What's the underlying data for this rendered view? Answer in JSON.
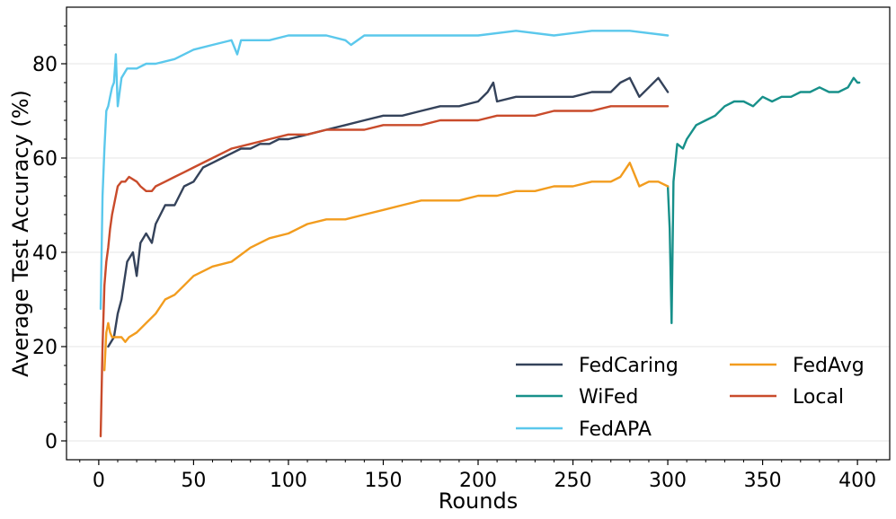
{
  "chart_data": {
    "type": "line",
    "title": "",
    "xlabel": "Rounds",
    "ylabel": "Average Test Accuracy (%)",
    "xlim": [
      -17,
      417
    ],
    "ylim": [
      -4,
      92
    ],
    "xticks": [
      0,
      50,
      100,
      150,
      200,
      250,
      300,
      350,
      400
    ],
    "yticks": [
      0,
      20,
      40,
      60,
      80
    ],
    "grid": "horizontal",
    "legend_position": "lower-right",
    "series": [
      {
        "name": "FedCaring",
        "color": "#34425a",
        "x": [
          5,
          8,
          10,
          12,
          15,
          18,
          20,
          22,
          25,
          28,
          30,
          35,
          40,
          45,
          50,
          55,
          60,
          65,
          70,
          75,
          80,
          85,
          90,
          95,
          100,
          110,
          120,
          130,
          140,
          150,
          160,
          170,
          180,
          190,
          200,
          205,
          208,
          210,
          220,
          230,
          240,
          250,
          260,
          270,
          275,
          280,
          285,
          290,
          295,
          300
        ],
        "y": [
          20,
          22,
          27,
          30,
          38,
          40,
          35,
          42,
          44,
          42,
          46,
          50,
          50,
          54,
          55,
          58,
          59,
          60,
          61,
          62,
          62,
          63,
          63,
          64,
          64,
          65,
          66,
          67,
          68,
          69,
          69,
          70,
          71,
          71,
          72,
          74,
          76,
          72,
          73,
          73,
          73,
          73,
          74,
          74,
          76,
          77,
          73,
          75,
          77,
          74
        ]
      },
      {
        "name": "WiFed",
        "color": "#17908a",
        "x": [
          300,
          301,
          302,
          303,
          305,
          308,
          310,
          315,
          320,
          325,
          330,
          335,
          340,
          345,
          350,
          355,
          360,
          365,
          370,
          375,
          380,
          385,
          390,
          395,
          398,
          400,
          401
        ],
        "y": [
          54,
          45,
          25,
          55,
          63,
          62,
          64,
          67,
          68,
          69,
          71,
          72,
          72,
          71,
          73,
          72,
          73,
          73,
          74,
          74,
          75,
          74,
          74,
          75,
          77,
          76,
          76
        ]
      },
      {
        "name": "FedAPA",
        "color": "#5bc8ec",
        "x": [
          1,
          2,
          3,
          4,
          5,
          6,
          7,
          8,
          9,
          10,
          12,
          15,
          20,
          25,
          30,
          40,
          50,
          60,
          70,
          73,
          75,
          80,
          90,
          100,
          110,
          120,
          130,
          133,
          140,
          150,
          160,
          170,
          180,
          200,
          220,
          240,
          260,
          280,
          300
        ],
        "y": [
          28,
          52,
          62,
          70,
          71,
          73,
          75,
          76,
          82,
          71,
          77,
          79,
          79,
          80,
          80,
          81,
          83,
          84,
          85,
          82,
          85,
          85,
          85,
          86,
          86,
          86,
          85,
          84,
          86,
          86,
          86,
          86,
          86,
          86,
          87,
          86,
          87,
          87,
          86
        ]
      },
      {
        "name": "FedAvg",
        "color": "#f29c1e",
        "x": [
          3,
          4,
          5,
          6,
          7,
          8,
          10,
          12,
          14,
          16,
          20,
          25,
          30,
          35,
          40,
          45,
          50,
          60,
          70,
          80,
          90,
          100,
          110,
          120,
          130,
          140,
          150,
          160,
          170,
          180,
          190,
          200,
          210,
          220,
          230,
          240,
          250,
          260,
          270,
          275,
          280,
          285,
          290,
          295,
          300
        ],
        "y": [
          15,
          23,
          25,
          23,
          22,
          22,
          22,
          22,
          21,
          22,
          23,
          25,
          27,
          30,
          31,
          33,
          35,
          37,
          38,
          41,
          43,
          44,
          46,
          47,
          47,
          48,
          49,
          50,
          51,
          51,
          51,
          52,
          52,
          53,
          53,
          54,
          54,
          55,
          55,
          56,
          59,
          54,
          55,
          55,
          54
        ]
      },
      {
        "name": "Local",
        "color": "#c94b2b",
        "x": [
          1,
          2,
          3,
          4,
          5,
          6,
          7,
          8,
          10,
          12,
          14,
          16,
          20,
          22,
          25,
          28,
          30,
          35,
          40,
          45,
          50,
          60,
          70,
          80,
          90,
          100,
          110,
          120,
          130,
          140,
          150,
          160,
          170,
          180,
          190,
          200,
          210,
          220,
          230,
          240,
          250,
          260,
          270,
          280,
          290,
          300
        ],
        "y": [
          1,
          20,
          33,
          38,
          41,
          45,
          48,
          50,
          54,
          55,
          55,
          56,
          55,
          54,
          53,
          53,
          54,
          55,
          56,
          57,
          58,
          60,
          62,
          63,
          64,
          65,
          65,
          66,
          66,
          66,
          67,
          67,
          67,
          68,
          68,
          68,
          69,
          69,
          69,
          70,
          70,
          70,
          71,
          71,
          71,
          71
        ]
      }
    ],
    "legend": [
      {
        "series": "FedCaring",
        "column": 0,
        "row": 0
      },
      {
        "series": "WiFed",
        "column": 0,
        "row": 1
      },
      {
        "series": "FedAPA",
        "column": 0,
        "row": 2
      },
      {
        "series": "FedAvg",
        "column": 1,
        "row": 0
      },
      {
        "series": "Local",
        "column": 1,
        "row": 1
      }
    ]
  }
}
